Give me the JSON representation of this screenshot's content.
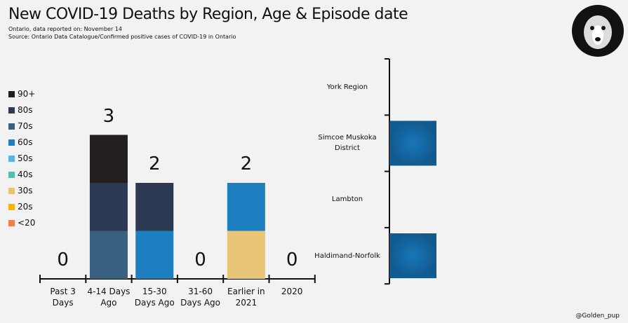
{
  "title": "New COVID-19 Deaths by Region, Age & Episode date",
  "subtitle": "Ontario, data reported on: November 14",
  "source": "Source: Ontario Data Catalogue/Confirmed positive cases of COVID-19 in Ontario",
  "credit": "@Golden_pup",
  "chart_data": [
    {
      "type": "stacked_bar",
      "categories": [
        "Past 3 Days",
        "4-14 Days Ago",
        "15-30 Days Ago",
        "31-60 Days Ago",
        "Earlier in 2021",
        "2020"
      ],
      "totals": [
        0,
        3,
        2,
        0,
        2,
        0
      ],
      "series": [
        {
          "name": "90+",
          "color": "#231f20",
          "values": [
            0,
            1,
            0,
            0,
            0,
            0
          ]
        },
        {
          "name": "80s",
          "color": "#2b3a52",
          "values": [
            0,
            1,
            1,
            0,
            0,
            0
          ]
        },
        {
          "name": "70s",
          "color": "#3a607f",
          "values": [
            0,
            1,
            0,
            0,
            0,
            0
          ]
        },
        {
          "name": "60s",
          "color": "#1d7fbf",
          "values": [
            0,
            0,
            1,
            0,
            1,
            0
          ]
        },
        {
          "name": "50s",
          "color": "#5ab4e5",
          "values": [
            0,
            0,
            0,
            0,
            0,
            0
          ]
        },
        {
          "name": "40s",
          "color": "#4fc1b0",
          "values": [
            0,
            0,
            0,
            0,
            0,
            0
          ]
        },
        {
          "name": "30s",
          "color": "#e8c577",
          "values": [
            0,
            0,
            0,
            0,
            1,
            0
          ]
        },
        {
          "name": "20s",
          "color": "#f7b500",
          "values": [
            0,
            0,
            0,
            0,
            0,
            0
          ]
        },
        {
          "name": "<20",
          "color": "#f07e4f",
          "values": [
            0,
            0,
            0,
            0,
            0,
            0
          ]
        }
      ]
    },
    {
      "type": "hbar",
      "categories": [
        "York Region",
        "Simcoe Muskoka District",
        "Lambton",
        "Haldimand-Norfolk"
      ],
      "values": [
        0,
        1,
        0,
        1
      ],
      "color": "#1a72b0"
    }
  ]
}
